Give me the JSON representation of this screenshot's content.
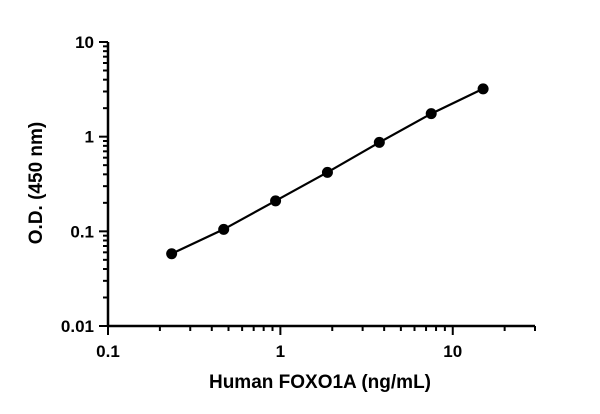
{
  "chart_data": {
    "type": "scatter",
    "title": "",
    "xlabel": "Human FOXO1A (ng/mL)",
    "ylabel": "O.D. (450 nm)",
    "xscale": "log",
    "yscale": "log",
    "xlim": [
      0.1,
      30
    ],
    "ylim": [
      0.01,
      10
    ],
    "x_ticks": [
      "0.1",
      "1",
      "10"
    ],
    "y_ticks": [
      "0.01",
      "0.1",
      "1",
      "10"
    ],
    "grid": false,
    "legend": "none",
    "fit_line": true,
    "series": [
      {
        "x": [
          0.234,
          0.469,
          0.938,
          1.875,
          3.75,
          7.5,
          15
        ],
        "y": [
          0.058,
          0.105,
          0.21,
          0.42,
          0.87,
          1.75,
          3.2
        ]
      }
    ],
    "colors": {
      "marker": "#000000",
      "line": "#000000",
      "axis": "#000000"
    }
  }
}
